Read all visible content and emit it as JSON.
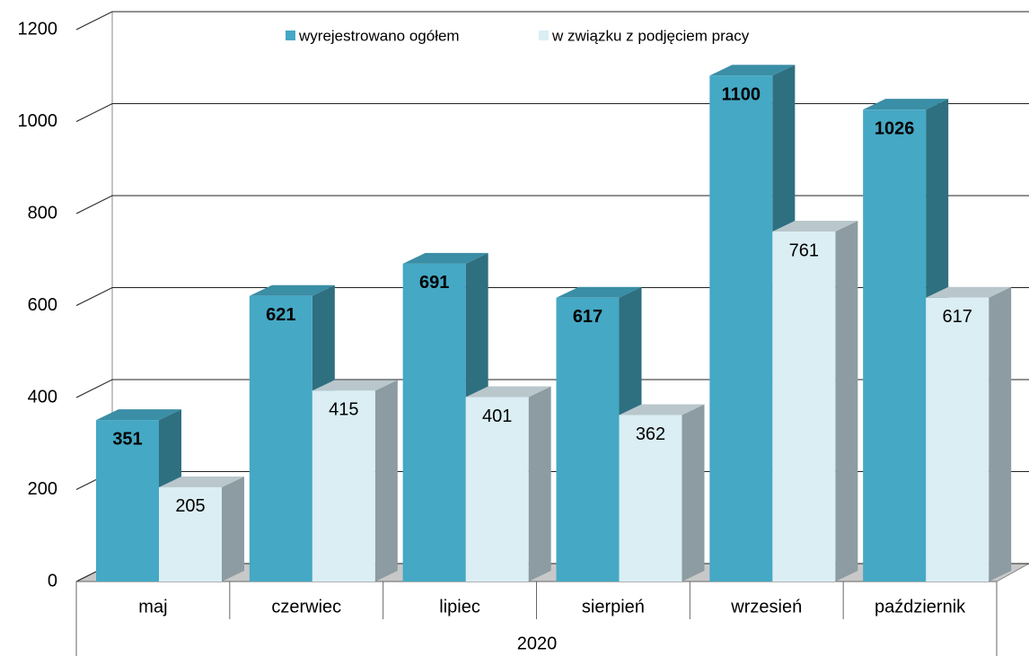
{
  "chart_data": {
    "type": "bar3d",
    "categories": [
      "maj",
      "czerwiec",
      "lipiec",
      "sierpień",
      "wrzesień",
      "październik"
    ],
    "group_label": "2020",
    "series": [
      {
        "name": "wyrejestrowano ogółem",
        "color": "#45a8c4",
        "values": [
          351,
          621,
          691,
          617,
          1100,
          1026
        ]
      },
      {
        "name": "w związku z podjęciem pracy",
        "color": "#daeef4",
        "values": [
          205,
          415,
          401,
          362,
          761,
          617
        ]
      }
    ],
    "ylim": [
      0,
      1200
    ],
    "yticks": [
      0,
      200,
      400,
      600,
      800,
      1000,
      1200
    ],
    "grid": true,
    "legend": "top"
  }
}
